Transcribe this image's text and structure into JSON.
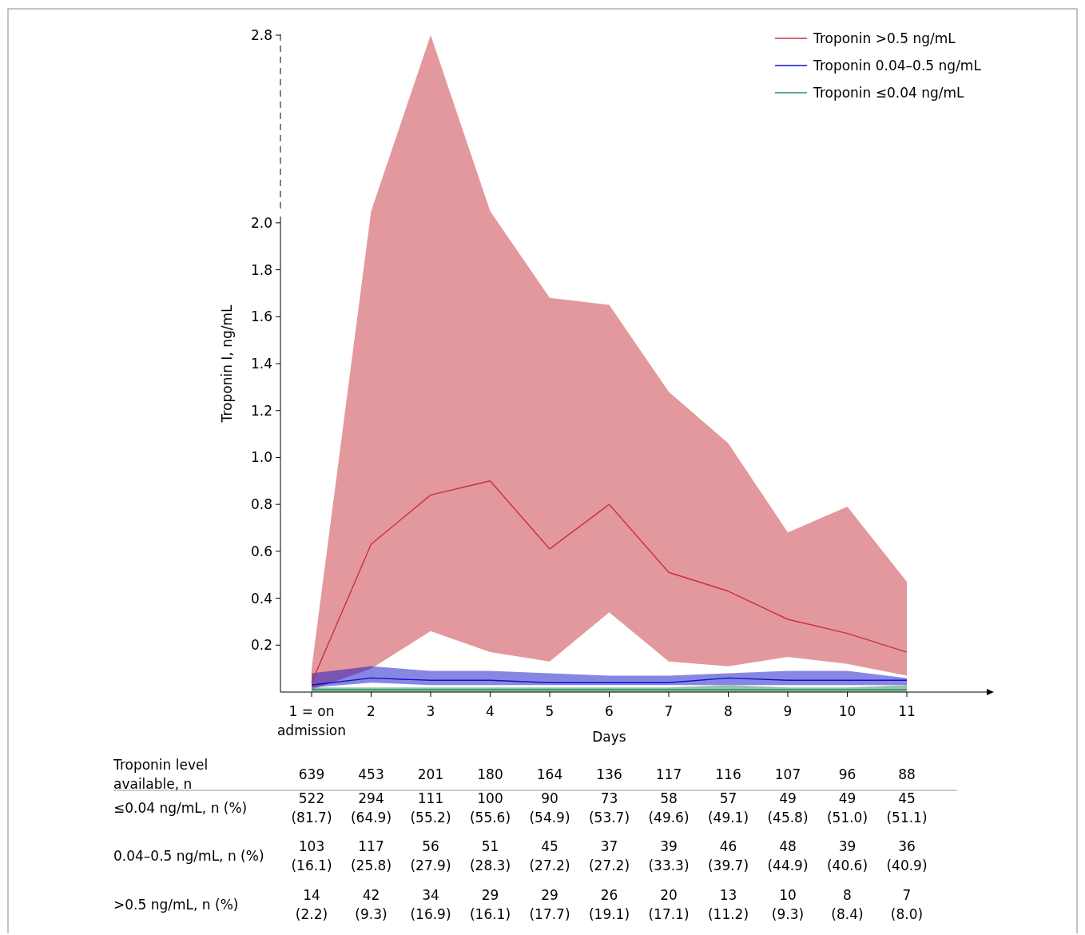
{
  "chart_data": {
    "type": "line",
    "xlabel": "Days",
    "ylabel": "Troponin I, ng/mL",
    "categories": [
      "1 = on admission",
      "2",
      "3",
      "4",
      "5",
      "6",
      "7",
      "8",
      "9",
      "10",
      "11"
    ],
    "ylim": [
      0,
      2.8
    ],
    "yticks": [
      0.2,
      0.4,
      0.6,
      0.8,
      {
        "value": 1,
        "label": "1.0"
      },
      1.2,
      1.4,
      1.6,
      1.8,
      {
        "value": 2,
        "label": "2.0"
      },
      2.8
    ],
    "legend": "top right",
    "marker": "none",
    "line_style": "solid",
    "grid": false,
    "series": [
      {
        "name": "Troponin >0.5 ng/mL",
        "color": "#c8323c",
        "values": [
          0.04,
          0.63,
          0.84,
          0.9,
          0.61,
          0.8,
          0.51,
          0.43,
          0.31,
          0.25,
          0.17
        ],
        "lower": [
          0.01,
          0.1,
          0.26,
          0.17,
          0.13,
          0.34,
          0.13,
          0.11,
          0.15,
          0.12,
          0.07
        ],
        "upper": [
          0.1,
          2.05,
          2.8,
          2.05,
          1.68,
          1.65,
          1.28,
          1.06,
          0.68,
          0.79,
          0.47
        ]
      },
      {
        "name": "Troponin 0.04–0.5 ng/mL",
        "color": "#1010c8",
        "values": [
          0.03,
          0.06,
          0.05,
          0.05,
          0.04,
          0.04,
          0.04,
          0.06,
          0.05,
          0.05,
          0.05
        ],
        "lower": [
          0.02,
          0.04,
          0.03,
          0.03,
          0.03,
          0.03,
          0.03,
          0.03,
          0.03,
          0.03,
          0.03
        ],
        "upper": [
          0.08,
          0.11,
          0.09,
          0.09,
          0.08,
          0.07,
          0.07,
          0.08,
          0.09,
          0.09,
          0.06
        ]
      },
      {
        "name": "Troponin ≤0.04 ng/mL",
        "color": "#2e8b57",
        "values": [
          0.01,
          0.01,
          0.01,
          0.01,
          0.01,
          0.01,
          0.01,
          0.01,
          0.01,
          0.01,
          0.01
        ],
        "lower": [
          0.0,
          0.0,
          0.0,
          0.0,
          0.0,
          0.0,
          0.0,
          0.0,
          0.0,
          0.0,
          0.0
        ],
        "upper": [
          0.02,
          0.02,
          0.02,
          0.02,
          0.02,
          0.02,
          0.02,
          0.03,
          0.02,
          0.02,
          0.03
        ]
      }
    ],
    "annotations": [
      "Troponin level available, n",
      "≤0.04 ng/mL, n (%)",
      "0.04–0.5 ng/mL, n (%)",
      ">0.5 ng/mL, n (%)",
      "639",
      "453",
      "201",
      "180",
      "164",
      "136",
      "117",
      "116",
      "107",
      "96",
      "88",
      "522 (81.7)",
      "294 (64.9)",
      "111 (55.2)",
      "100 (55.6)",
      "90 (54.9)",
      "73 (53.7)",
      "58 (49.6)",
      "57 (49.1)",
      "49 (45.8)",
      "49 (51.0)",
      "45 (51.1)",
      "103 (16.1)",
      "117 (25.8)",
      "56 (27.9)",
      "51 (28.3)",
      "45 (27.2)",
      "37 (27.2)",
      "39 (33.3)",
      "46 (39.7)",
      "48 (44.9)",
      "39 (40.6)",
      "36 (40.9)",
      "14 (2.2)",
      "42 (9.3)",
      "34 (16.9)",
      "29 (16.1)",
      "29 (17.7)",
      "26 (19.1)",
      "20 (17.1)",
      "13 (11.2)",
      "10 (9.3)",
      "8 (8.4)",
      "7 (8.0)"
    ]
  }
}
